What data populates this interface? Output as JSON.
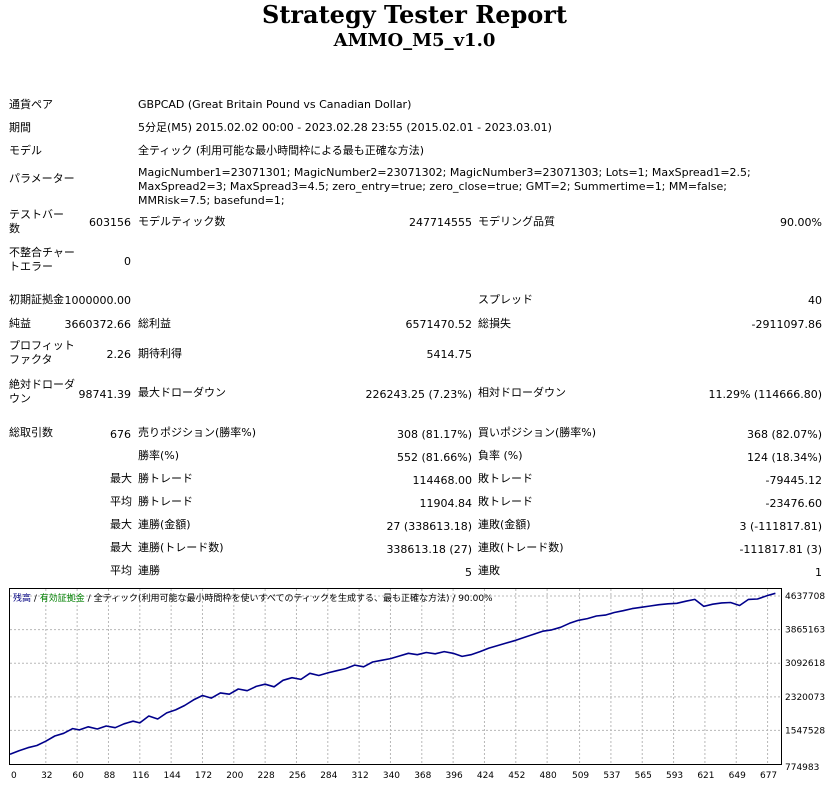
{
  "title": "Strategy Tester Report",
  "subtitle": "AMMO_M5_v1.0",
  "info": {
    "pair_label": "通貨ペア",
    "pair_value": "GBPCAD (Great Britain Pound vs Canadian Dollar)",
    "period_label": "期間",
    "period_value": "5分足(M5) 2015.02.02 00:00 - 2023.02.28 23:55 (2015.02.01 - 2023.03.01)",
    "model_label": "モデル",
    "model_value": "全ティック (利用可能な最小時間枠による最も正確な方法)",
    "params_label": "パラメーター",
    "params_value": "MagicNumber1=23071301; MagicNumber2=23071302; MagicNumber3=23071303; Lots=1; MaxSpread1=2.5; MaxSpread2=3; MaxSpread3=4.5; zero_entry=true; zero_close=true; GMT=2; Summertime=1; MM=false; MMRisk=7.5; basefund=1;"
  },
  "stats": {
    "bars_label": "テストバー数",
    "bars_value": "603156",
    "ticks_label": "モデルティック数",
    "ticks_value": "247714555",
    "quality_label": "モデリング品質",
    "quality_value": "90.00%",
    "mismatch_label": "不整合チャートエラー",
    "mismatch_value": "0",
    "deposit_label": "初期証拠金",
    "deposit_value": "1000000.00",
    "spread_label": "スプレッド",
    "spread_value": "40",
    "net_label": "純益",
    "net_value": "3660372.66",
    "gross_profit_label": "総利益",
    "gross_profit_value": "6571470.52",
    "gross_loss_label": "総損失",
    "gross_loss_value": "-2911097.86",
    "pf_label": "プロフィットファクタ",
    "pf_value": "2.26",
    "expected_label": "期待利得",
    "expected_value": "5414.75",
    "abs_dd_label": "絶対ドローダウン",
    "abs_dd_value": "98741.39",
    "max_dd_label": "最大ドローダウン",
    "max_dd_value": "226243.25 (7.23%)",
    "rel_dd_label": "相対ドローダウン",
    "rel_dd_value": "11.29% (114666.80)",
    "total_trades_label": "総取引数",
    "total_trades_value": "676",
    "short_label": "売りポジション(勝率%)",
    "short_value": "308 (81.17%)",
    "long_label": "買いポジション(勝率%)",
    "long_value": "368 (82.07%)",
    "win_pct_label": "勝率(%)",
    "win_pct_value": "552 (81.66%)",
    "loss_pct_label": "負率 (%)",
    "loss_pct_value": "124 (18.34%)",
    "max_label": "最大",
    "max_win_label": "勝トレード",
    "max_win_value": "114468.00",
    "max_loss_label": "敗トレード",
    "max_loss_value": "-79445.12",
    "avg_label": "平均",
    "avg_win_label": "勝トレード",
    "avg_win_value": "11904.84",
    "avg_loss_label": "敗トレード",
    "avg_loss_value": "-23476.60",
    "max2_label": "最大",
    "cons_wins_money_label": "連勝(金額)",
    "cons_wins_money_value": "27 (338613.18)",
    "cons_losses_money_label": "連敗(金額)",
    "cons_losses_money_value": "3 (-111817.81)",
    "max3_label": "最大",
    "cons_wins_count_label": "連勝(トレード数)",
    "cons_wins_count_value": "338613.18 (27)",
    "cons_losses_count_label": "連敗(トレード数)",
    "cons_losses_count_value": "-111817.81 (3)",
    "avg2_label": "平均",
    "avg_cons_wins_label": "連勝",
    "avg_cons_wins_value": "5",
    "avg_cons_losses_label": "連敗",
    "avg_cons_losses_value": "1"
  },
  "chart_legend": {
    "balance": "残高",
    "sep1": " / ",
    "equity": "有効証拠金",
    "sep2": " / ",
    "model": "全ティック(利用可能な最小時間枠を使いすべてのティックを生成する、最も正確な方法)",
    "sep3": " / ",
    "quality": "90.00%"
  },
  "chart_data": {
    "type": "line",
    "x_ticks": [
      "0",
      "32",
      "60",
      "88",
      "116",
      "144",
      "172",
      "200",
      "228",
      "256",
      "284",
      "312",
      "340",
      "368",
      "396",
      "424",
      "452",
      "480",
      "509",
      "537",
      "565",
      "593",
      "621",
      "649",
      "677"
    ],
    "y_ticks": [
      "774983",
      "1547528",
      "2320073",
      "3092618",
      "3865163",
      "4637708"
    ],
    "x_range": [
      0,
      689
    ],
    "y_range": [
      774983,
      4800000
    ],
    "grid": true,
    "line_color": "#00008b",
    "series": [
      {
        "x": [
          0,
          8,
          16,
          24,
          32,
          40,
          48,
          56,
          62,
          70,
          78,
          86,
          94,
          102,
          110,
          116,
          124,
          132,
          140,
          148,
          156,
          164,
          172,
          180,
          188,
          196,
          204,
          212,
          220,
          228,
          236,
          244,
          252,
          260,
          268,
          276,
          284,
          292,
          300,
          308,
          316,
          324,
          332,
          340,
          348,
          356,
          364,
          372,
          380,
          388,
          396,
          404,
          412,
          420,
          428,
          436,
          444,
          452,
          460,
          468,
          476,
          484,
          492,
          500,
          508,
          516,
          524,
          532,
          540,
          548,
          556,
          564,
          572,
          580,
          588,
          596,
          604,
          612,
          620,
          628,
          636,
          644,
          652,
          660,
          668,
          677,
          684
        ],
        "values": [
          1000000,
          1080000,
          1150000,
          1200000,
          1300000,
          1420000,
          1480000,
          1590000,
          1560000,
          1630000,
          1580000,
          1650000,
          1610000,
          1700000,
          1760000,
          1720000,
          1880000,
          1810000,
          1950000,
          2020000,
          2120000,
          2250000,
          2350000,
          2290000,
          2410000,
          2380000,
          2500000,
          2460000,
          2560000,
          2610000,
          2550000,
          2700000,
          2760000,
          2720000,
          2860000,
          2810000,
          2870000,
          2920000,
          2970000,
          3050000,
          3010000,
          3120000,
          3160000,
          3200000,
          3260000,
          3320000,
          3290000,
          3340000,
          3310000,
          3360000,
          3320000,
          3250000,
          3290000,
          3360000,
          3440000,
          3500000,
          3560000,
          3620000,
          3690000,
          3760000,
          3830000,
          3860000,
          3920000,
          4010000,
          4080000,
          4120000,
          4180000,
          4200000,
          4260000,
          4300000,
          4350000,
          4380000,
          4410000,
          4440000,
          4460000,
          4470000,
          4520000,
          4560000,
          4400000,
          4450000,
          4480000,
          4490000,
          4420000,
          4560000,
          4570000,
          4650000,
          4700000
        ]
      }
    ]
  }
}
